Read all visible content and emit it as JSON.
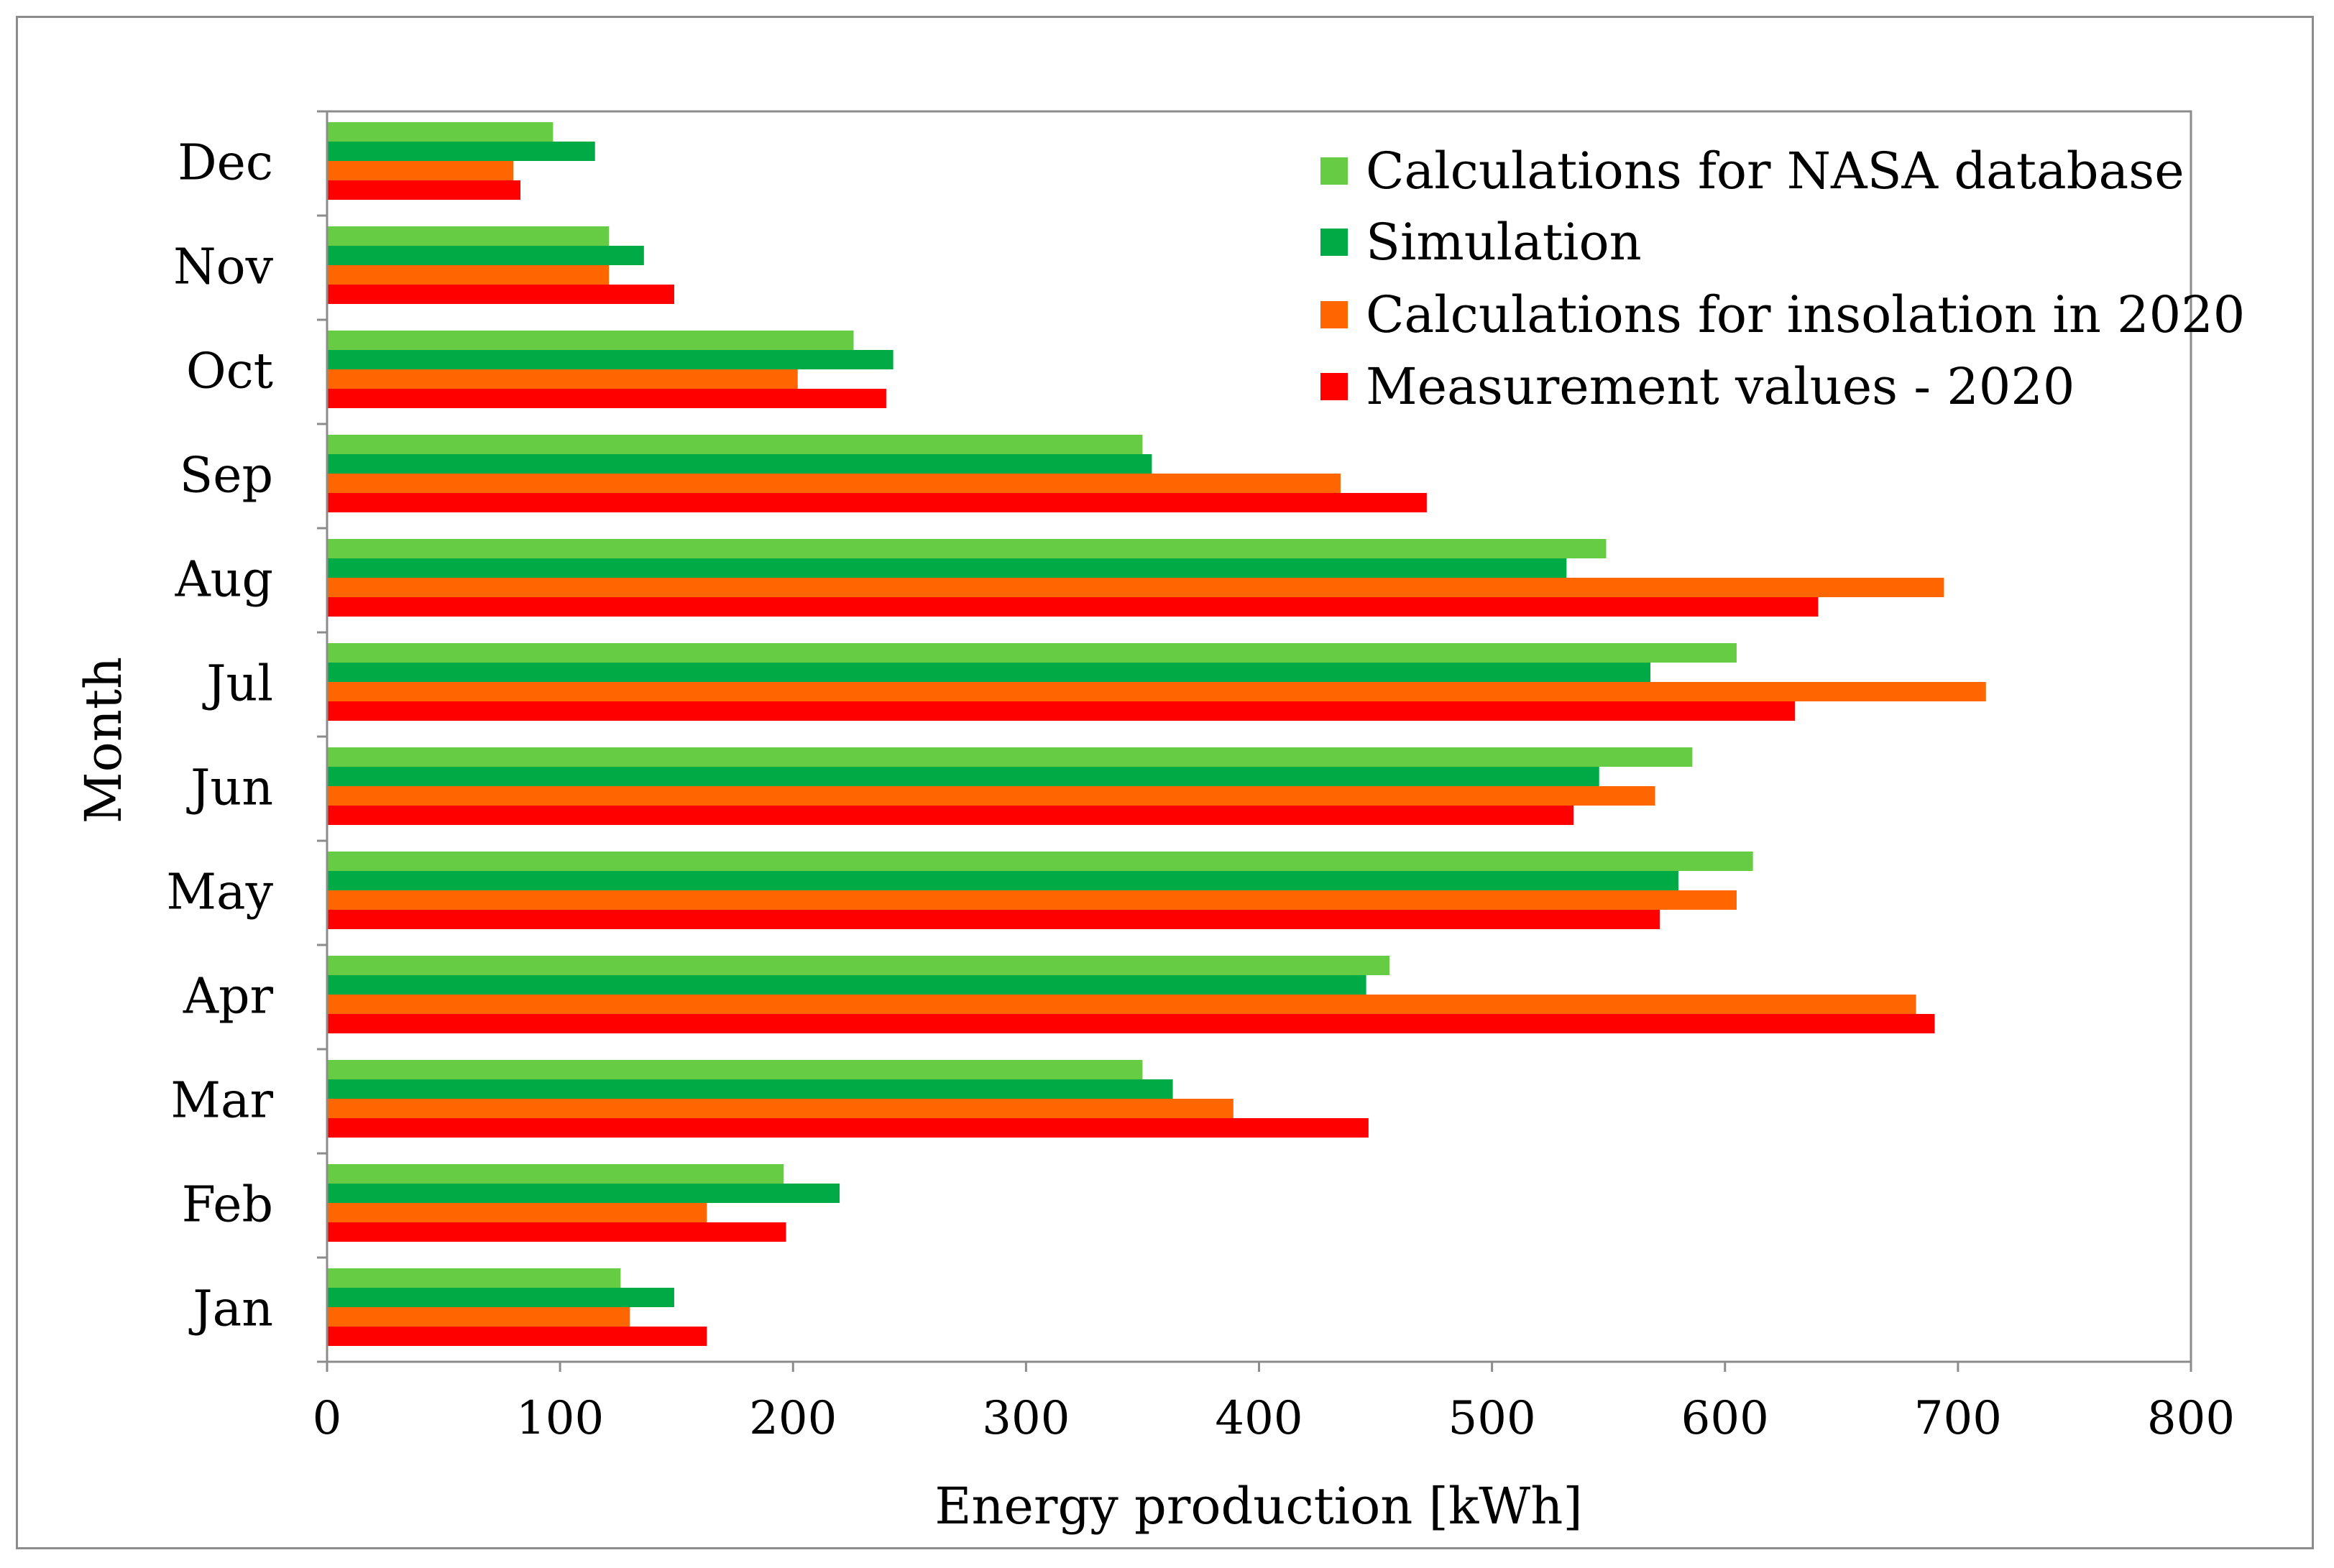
{
  "chart_data": {
    "type": "bar",
    "orientation": "horizontal",
    "categories": [
      "Jan",
      "Feb",
      "Mar",
      "Apr",
      "May",
      "Jun",
      "Jul",
      "Aug",
      "Sep",
      "Oct",
      "Nov",
      "Dec"
    ],
    "series": [
      {
        "name": "Calculations for NASA database",
        "color": "#66cc44",
        "values": [
          126,
          196,
          350,
          456,
          612,
          586,
          605,
          549,
          350,
          226,
          121,
          97
        ]
      },
      {
        "name": "Simulation",
        "color": "#00aa44",
        "values": [
          149,
          220,
          363,
          446,
          580,
          546,
          568,
          532,
          354,
          243,
          136,
          115
        ]
      },
      {
        "name": "Calculations for insolation in 2020",
        "color": "#ff6600",
        "values": [
          130,
          163,
          389,
          682,
          605,
          570,
          712,
          694,
          435,
          202,
          121,
          80
        ]
      },
      {
        "name": "Measurement values - 2020",
        "color": "#ff0000",
        "values": [
          163,
          197,
          447,
          690,
          572,
          535,
          630,
          640,
          472,
          240,
          149,
          83
        ]
      }
    ],
    "xlabel": "Energy production [kWh]",
    "ylabel": "Month",
    "xlim": [
      0,
      800
    ],
    "xticks": [
      0,
      100,
      200,
      300,
      400,
      500,
      600,
      700,
      800
    ],
    "xtick_labels": [
      "0",
      "100",
      "200",
      "300",
      "400",
      "500",
      "600",
      "700",
      "800"
    ],
    "legend_position": "top-right"
  }
}
